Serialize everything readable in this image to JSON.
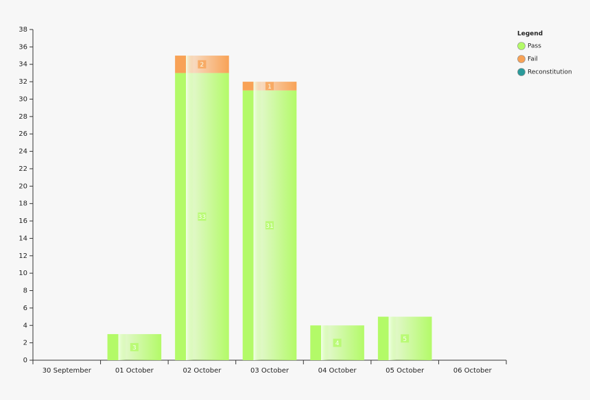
{
  "chart_data": {
    "type": "stacked_bar",
    "legend_title": "Legend",
    "legend_position": "top-right",
    "categories": [
      "30 September",
      "01 October",
      "02 October",
      "03 October",
      "04 October",
      "05 October",
      "06 October"
    ],
    "series": [
      {
        "name": "Pass",
        "color": "#b3fa68",
        "values": [
          null,
          3,
          33,
          31,
          4,
          5,
          null
        ]
      },
      {
        "name": "Fail",
        "color": "#f8a256",
        "values": [
          null,
          null,
          2,
          1,
          null,
          null,
          null
        ]
      },
      {
        "name": "Reconstitution",
        "color": "#2a9a9a",
        "values": [
          null,
          null,
          null,
          null,
          null,
          null,
          null
        ]
      }
    ],
    "ylim": [
      0,
      38
    ],
    "yticks": [
      0,
      2,
      4,
      6,
      8,
      10,
      12,
      14,
      16,
      18,
      20,
      22,
      24,
      26,
      28,
      30,
      32,
      34,
      36,
      38
    ]
  }
}
